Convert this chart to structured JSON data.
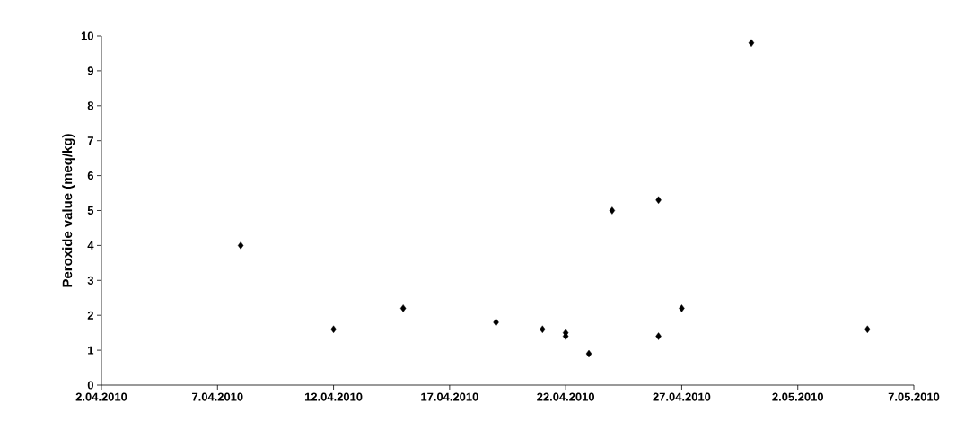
{
  "chart_data": {
    "type": "scatter",
    "ylabel": "Peroxide value (meq/kg)",
    "x": [
      "2010-04-08",
      "2010-04-12",
      "2010-04-15",
      "2010-04-19",
      "2010-04-21",
      "2010-04-22",
      "2010-04-22",
      "2010-04-23",
      "2010-04-24",
      "2010-04-26",
      "2010-04-26",
      "2010-04-27",
      "2010-04-30",
      "2010-05-05"
    ],
    "values": [
      4.0,
      1.6,
      2.2,
      1.8,
      1.6,
      1.5,
      1.4,
      0.9,
      5.0,
      5.3,
      1.4,
      2.2,
      9.8,
      1.6
    ],
    "color": "#000000",
    "marker": "diamond",
    "grid": false,
    "xlim": [
      "2010-04-02",
      "2010-05-07"
    ],
    "xticks": [
      {
        "value": "2010-04-02",
        "label": "2.04.2010"
      },
      {
        "value": "2010-04-07",
        "label": "7.04.2010"
      },
      {
        "value": "2010-04-12",
        "label": "12.04.2010"
      },
      {
        "value": "2010-04-17",
        "label": "17.04.2010"
      },
      {
        "value": "2010-04-22",
        "label": "22.04.2010"
      },
      {
        "value": "2010-04-27",
        "label": "27.04.2010"
      },
      {
        "value": "2010-05-02",
        "label": "2.05.2010"
      },
      {
        "value": "2010-05-07",
        "label": "7.05.2010"
      }
    ],
    "ylim": [
      0,
      10
    ],
    "yticks": [
      0,
      1,
      2,
      3,
      4,
      5,
      6,
      7,
      8,
      9,
      10
    ]
  }
}
